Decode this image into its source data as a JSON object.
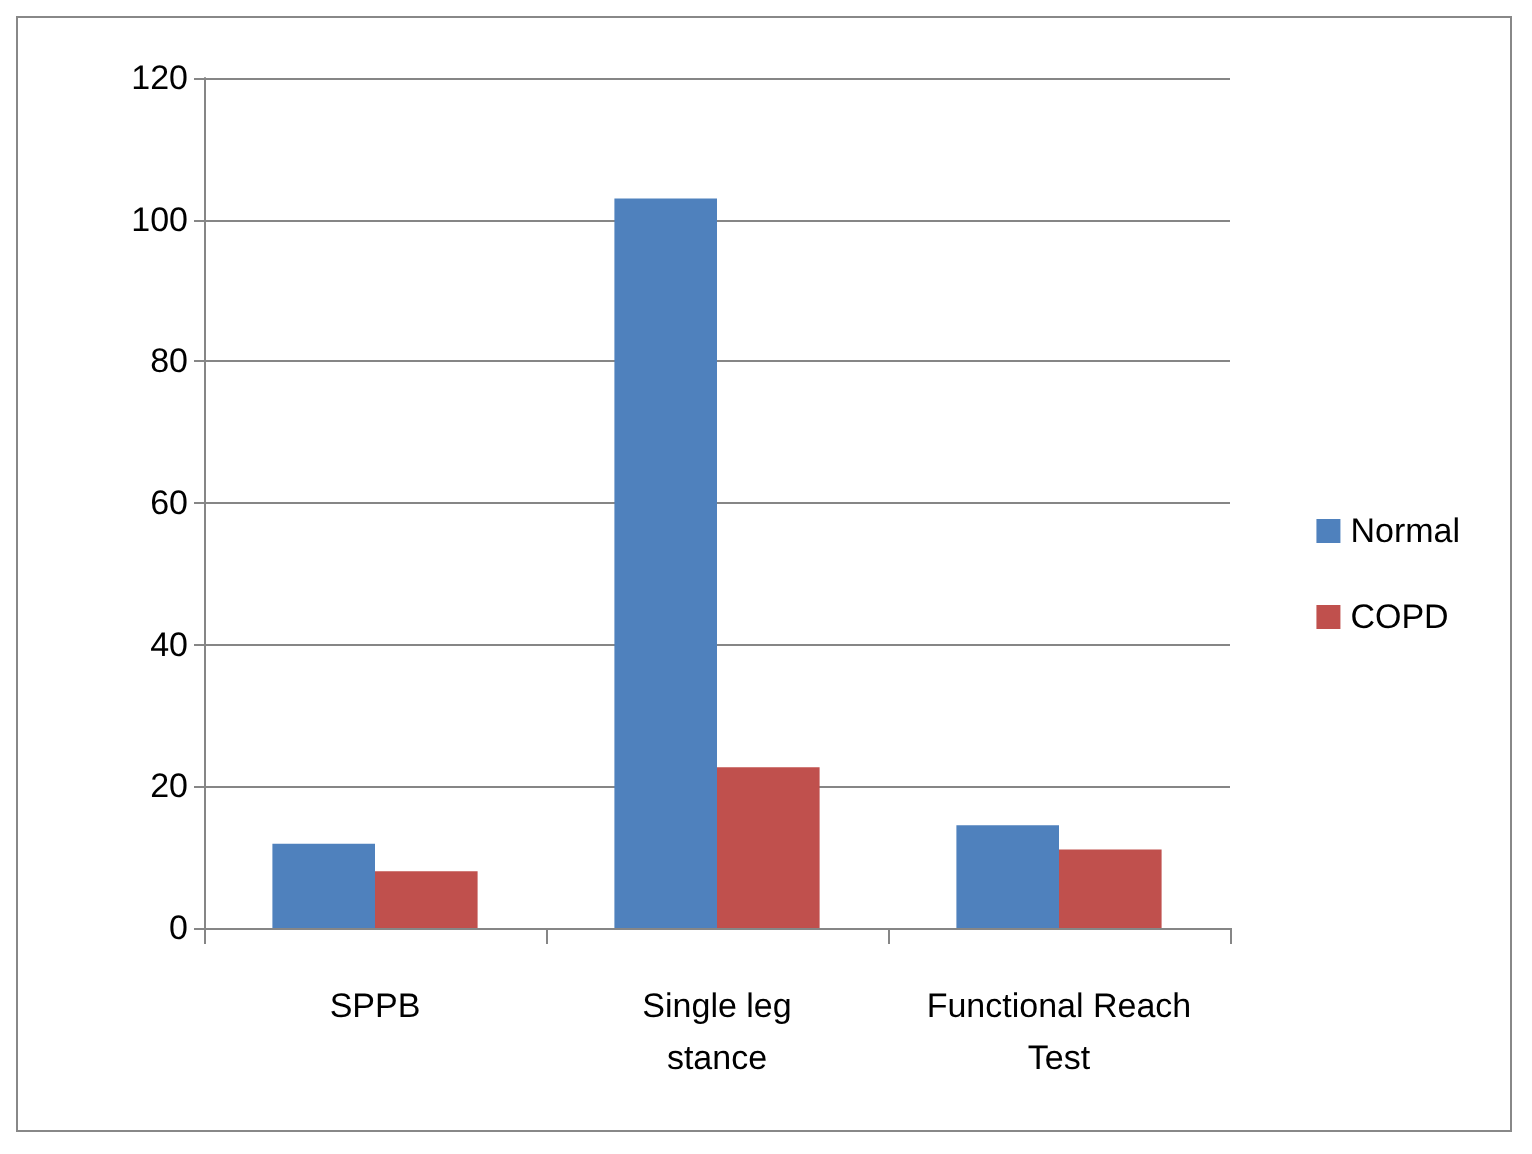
{
  "chart_data": {
    "type": "bar",
    "categories": [
      "SPPB",
      "Single leg stance",
      "Functional Reach Test"
    ],
    "series": [
      {
        "name": "Normal",
        "color": "#4f81bd",
        "values": [
          11.9,
          103,
          14.5
        ]
      },
      {
        "name": "COPD",
        "color": "#c0504d",
        "values": [
          8,
          22.7,
          11.1
        ]
      }
    ],
    "ylim": [
      0,
      120
    ],
    "yticks": [
      0,
      20,
      40,
      60,
      80,
      100,
      120
    ],
    "grid": "y",
    "legend": "right"
  }
}
